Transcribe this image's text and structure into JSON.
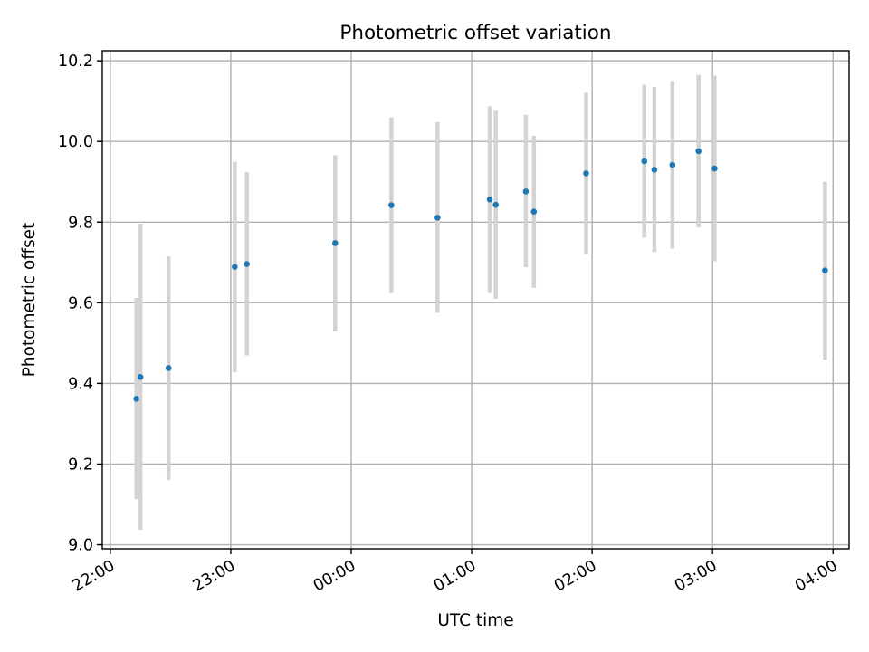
{
  "chart_data": {
    "type": "scatter",
    "title": "Photometric offset variation",
    "xlabel": "UTC time",
    "ylabel": "Photometric offset",
    "xlim": [
      "21:56",
      "04:08"
    ],
    "ylim": [
      8.99,
      10.225
    ],
    "x_ticks": [
      "22:00",
      "23:00",
      "00:00",
      "01:00",
      "02:00",
      "03:00",
      "04:00"
    ],
    "y_ticks": [
      "9.0",
      "9.2",
      "9.4",
      "9.6",
      "9.8",
      "10.0",
      "10.2"
    ],
    "grid": true,
    "errorbar_color": "#d3d3d3",
    "point_color": "#1f77b4",
    "points": [
      {
        "x": "22:13",
        "y": 9.362,
        "lo": 9.113,
        "hi": 9.612
      },
      {
        "x": "22:15",
        "y": 9.416,
        "lo": 9.037,
        "hi": 9.796
      },
      {
        "x": "22:29",
        "y": 9.438,
        "lo": 9.161,
        "hi": 9.715
      },
      {
        "x": "23:02",
        "y": 9.689,
        "lo": 9.428,
        "hi": 9.95
      },
      {
        "x": "23:08",
        "y": 9.696,
        "lo": 9.469,
        "hi": 9.924
      },
      {
        "x": "23:52",
        "y": 9.748,
        "lo": 9.529,
        "hi": 9.966
      },
      {
        "x": "00:20",
        "y": 9.842,
        "lo": 9.624,
        "hi": 10.06
      },
      {
        "x": "00:43",
        "y": 9.811,
        "lo": 9.575,
        "hi": 10.048
      },
      {
        "x": "01:09",
        "y": 9.856,
        "lo": 9.624,
        "hi": 10.087
      },
      {
        "x": "01:12",
        "y": 9.843,
        "lo": 9.61,
        "hi": 10.076
      },
      {
        "x": "01:27",
        "y": 9.876,
        "lo": 9.688,
        "hi": 10.066
      },
      {
        "x": "01:31",
        "y": 9.826,
        "lo": 9.637,
        "hi": 10.014
      },
      {
        "x": "01:57",
        "y": 9.921,
        "lo": 9.721,
        "hi": 10.121
      },
      {
        "x": "02:26",
        "y": 9.951,
        "lo": 9.761,
        "hi": 10.141
      },
      {
        "x": "02:31",
        "y": 9.93,
        "lo": 9.726,
        "hi": 10.135
      },
      {
        "x": "02:40",
        "y": 9.942,
        "lo": 9.734,
        "hi": 10.15
      },
      {
        "x": "02:53",
        "y": 9.976,
        "lo": 9.787,
        "hi": 10.165
      },
      {
        "x": "03:01",
        "y": 9.933,
        "lo": 9.703,
        "hi": 10.163
      },
      {
        "x": "03:56",
        "y": 9.68,
        "lo": 9.459,
        "hi": 9.9
      }
    ]
  }
}
